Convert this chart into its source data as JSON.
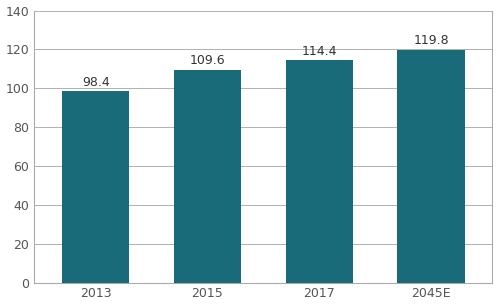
{
  "categories": [
    "2013",
    "2015",
    "2017",
    "2045E"
  ],
  "values": [
    98.4,
    109.6,
    114.4,
    119.8
  ],
  "bar_color": "#1a6b7a",
  "bar_width": 0.6,
  "ylim": [
    0,
    140
  ],
  "yticks": [
    0,
    20,
    40,
    60,
    80,
    100,
    120,
    140
  ],
  "grid_color": "#b0b0b0",
  "background_color": "#ffffff",
  "spine_color": "#aaaaaa",
  "label_fontsize": 9,
  "value_fontsize": 9,
  "tick_label_color": "#555555"
}
